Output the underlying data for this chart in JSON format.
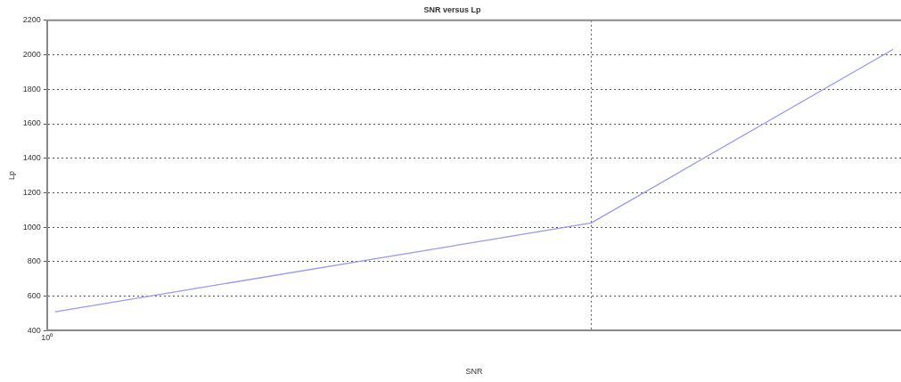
{
  "chart_data": {
    "type": "line",
    "title": "SNR versus Lp",
    "xlabel": "SNR",
    "ylabel": "Lp",
    "categories": [
      null,
      null,
      null,
      null,
      null,
      null,
      null,
      null,
      null,
      null,
      null,
      null,
      null,
      null,
      null,
      null,
      null,
      null,
      null,
      null,
      null,
      null,
      null,
      null,
      null,
      null,
      null,
      null,
      null,
      null,
      null,
      null,
      null,
      null,
      null,
      null,
      null,
      null,
      null,
      null,
      null,
      null,
      null,
      null,
      null,
      null,
      null,
      null,
      null,
      null,
      null
    ],
    "series": [
      {
        "color": "#9999ee",
        "values": [
          510,
          null,
          null,
          null,
          null,
          null,
          null,
          null,
          null,
          null,
          null,
          null,
          null,
          null,
          null,
          null,
          null,
          null,
          null,
          null,
          null,
          null,
          null,
          null,
          null,
          null,
          null,
          null,
          null,
          null,
          null,
          null,
          1025,
          null,
          null,
          null,
          null,
          null,
          null,
          null,
          null,
          null,
          null,
          null,
          null,
          null,
          null,
          null,
          null,
          null,
          2030
        ]
      }
    ],
    "annotations": [
      "10⁰"
    ],
    "ylim": [
      400,
      2200
    ],
    "yticks": [
      400,
      600,
      800,
      1000,
      1200,
      1400,
      1600,
      1800,
      2000,
      2200
    ],
    "grid": "y",
    "legend": false,
    "marker": "none",
    "line_style": "solid"
  }
}
